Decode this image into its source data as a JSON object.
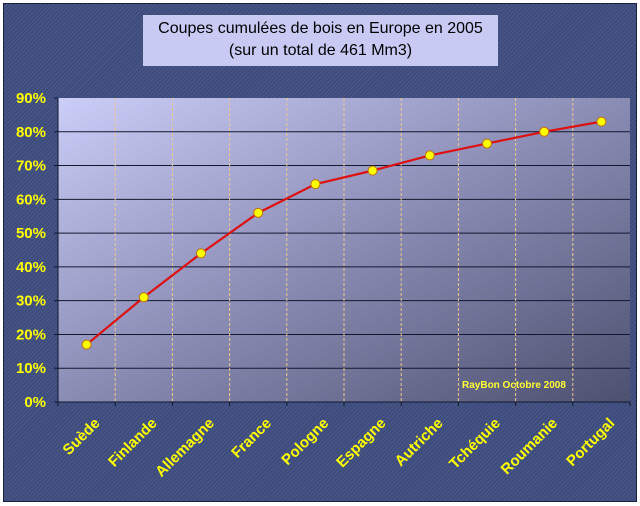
{
  "chart_data": {
    "type": "line",
    "title": "Coupes cumulées de bois en Europe en 2005",
    "subtitle": "(sur un total de 461 Mm3)",
    "categories": [
      "Suède",
      "Finlande",
      "Allemagne",
      "France",
      "Pologne",
      "Espagne",
      "Autriche",
      "Tchéquie",
      "Roumanie",
      "Portugal"
    ],
    "values": [
      17,
      31,
      44,
      56,
      64.5,
      68.5,
      73,
      76.5,
      80,
      83
    ],
    "ylim": [
      0,
      90
    ],
    "ytick_labels": [
      "0%",
      "10%",
      "20%",
      "30%",
      "40%",
      "50%",
      "60%",
      "70%",
      "80%",
      "90%"
    ],
    "yticks": [
      0,
      10,
      20,
      30,
      40,
      50,
      60,
      70,
      80,
      90
    ],
    "annotation": "RayBon Octobre 2008",
    "grid": "horizontal solid, vertical dashed",
    "colors": {
      "line": "#dd1111",
      "marker": "#ffff00",
      "labels": "#ffff00",
      "background": "#3d4c7c"
    }
  }
}
